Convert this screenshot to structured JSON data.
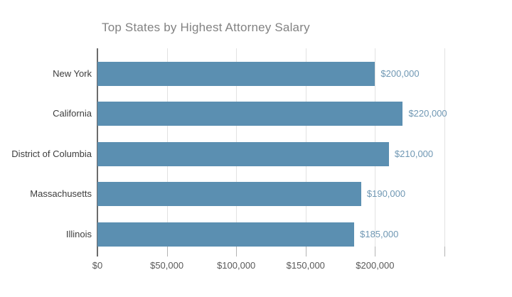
{
  "chart_data": {
    "type": "bar",
    "orientation": "horizontal",
    "title": "Top States by Highest Attorney Salary",
    "categories": [
      "New York",
      "California",
      "District of Columbia",
      "Massachusetts",
      "Illinois"
    ],
    "values": [
      200000,
      220000,
      210000,
      190000,
      185000
    ],
    "value_labels": [
      "$200,000",
      "$220,000",
      "$210,000",
      "$190,000",
      "$185,000"
    ],
    "xlabel": "",
    "ylabel": "",
    "xlim": [
      0,
      250000
    ],
    "x_ticks": [
      0,
      50000,
      100000,
      150000,
      200000,
      250000
    ],
    "x_tick_labels": [
      "$0",
      "$50,000",
      "$100,000",
      "$150,000",
      "$200,000",
      ""
    ],
    "grid": true,
    "legend": "none",
    "colors": {
      "bar": "#5b8fb1",
      "value_label": "#6f97b3",
      "title": "#828282",
      "category_label": "#3d3d3d",
      "axis_label": "#595959",
      "gridline": "#e2e2e2",
      "tick": "#b3b3b3",
      "baseline": "#6b6b6b",
      "background": "#ffffff"
    }
  }
}
